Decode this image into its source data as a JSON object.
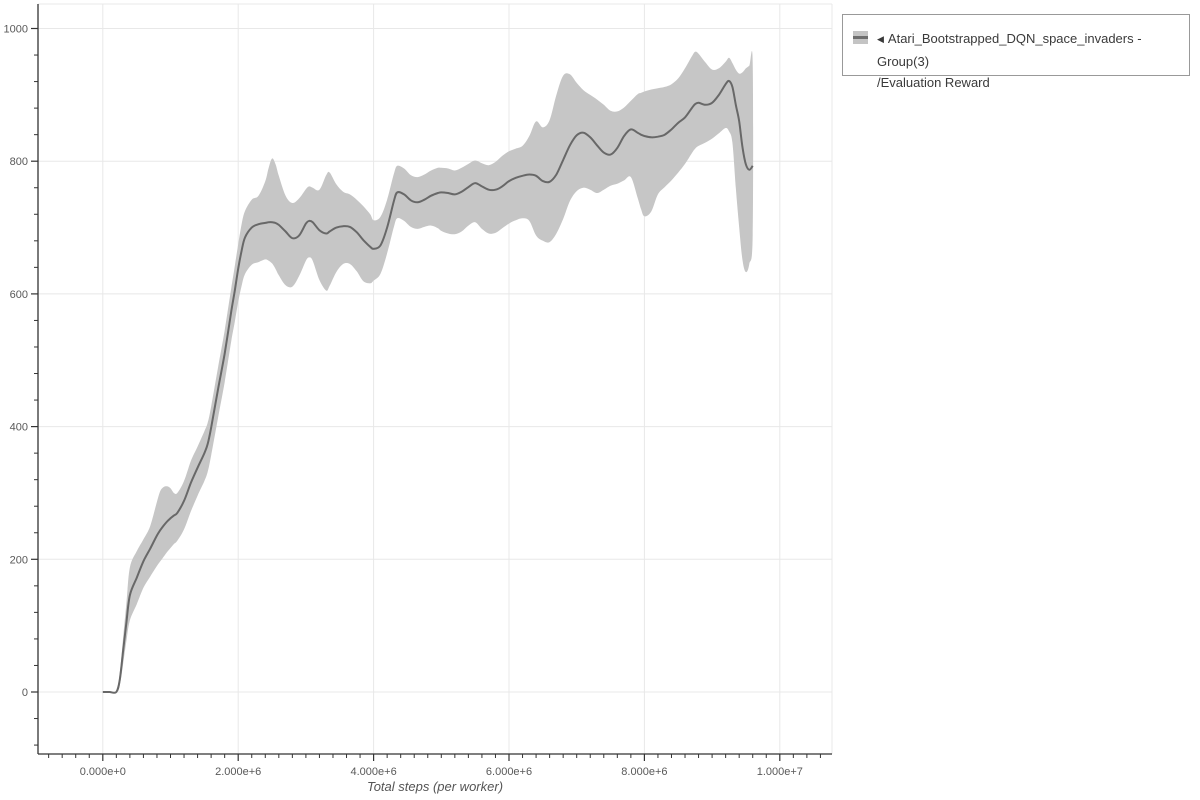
{
  "legend": {
    "collapse_icon": "left-triangle",
    "series_label": "Atari_Bootstrapped_DQN_space_invaders - Group(3)",
    "metric_label": "/Evaluation Reward"
  },
  "chart_data": {
    "type": "line",
    "title": "",
    "xlabel": "Total steps (per worker)",
    "ylabel": "",
    "grid": true,
    "legend_position": "outside-top-right",
    "x_range_millions": [
      -0.96,
      10.77
    ],
    "y_range": [
      -93,
      1037
    ],
    "x_major_ticks": [
      {
        "m": 0,
        "label": "0.000e+0"
      },
      {
        "m": 2,
        "label": "2.000e+6"
      },
      {
        "m": 4,
        "label": "4.000e+6"
      },
      {
        "m": 6,
        "label": "6.000e+6"
      },
      {
        "m": 8,
        "label": "8.000e+6"
      },
      {
        "m": 10,
        "label": "1.000e+7"
      }
    ],
    "y_major_ticks": [
      {
        "v": 0,
        "label": "0"
      },
      {
        "v": 200,
        "label": "200"
      },
      {
        "v": 400,
        "label": "400"
      },
      {
        "v": 600,
        "label": "600"
      },
      {
        "v": 800,
        "label": "800"
      },
      {
        "v": 1000,
        "label": "1000"
      }
    ],
    "x_minor_step_millions": 0.2,
    "y_minor_step": 40,
    "colors": {
      "line": "#686868",
      "band": "#c6c6c6",
      "grid": "#e8e8e8",
      "axis": "#333333",
      "tick_label": "#595959",
      "axis_title": "#555555"
    },
    "series": [
      {
        "name": "Atari_Bootstrapped_DQN_space_invaders - Group(3)/Evaluation Reward",
        "x_unit": "millions of steps",
        "points_format": [
          "x_millions",
          "mean",
          "band_low",
          "band_high"
        ],
        "points": [
          [
            0.0,
            0,
            0,
            0
          ],
          [
            0.1,
            0,
            0,
            0
          ],
          [
            0.2,
            0,
            0,
            0
          ],
          [
            0.25,
            18,
            10,
            28
          ],
          [
            0.3,
            62,
            42,
            82
          ],
          [
            0.35,
            106,
            78,
            136
          ],
          [
            0.4,
            146,
            108,
            188
          ],
          [
            0.5,
            172,
            132,
            212
          ],
          [
            0.6,
            197,
            157,
            230
          ],
          [
            0.7,
            216,
            174,
            250
          ],
          [
            0.8,
            236,
            190,
            287
          ],
          [
            0.85,
            244,
            197,
            303
          ],
          [
            0.9,
            251,
            204,
            309
          ],
          [
            0.95,
            257,
            211,
            310
          ],
          [
            1.0,
            262,
            217,
            307
          ],
          [
            1.05,
            266,
            223,
            300
          ],
          [
            1.1,
            270,
            228,
            300
          ],
          [
            1.2,
            288,
            245,
            318
          ],
          [
            1.3,
            315,
            272,
            348
          ],
          [
            1.4,
            338,
            296,
            370
          ],
          [
            1.5,
            360,
            318,
            393
          ],
          [
            1.55,
            374,
            332,
            406
          ],
          [
            1.6,
            398,
            356,
            430
          ],
          [
            1.7,
            455,
            412,
            488
          ],
          [
            1.8,
            510,
            467,
            545
          ],
          [
            1.9,
            575,
            530,
            610
          ],
          [
            1.95,
            605,
            558,
            642
          ],
          [
            2.0,
            638,
            588,
            675
          ],
          [
            2.05,
            665,
            612,
            705
          ],
          [
            2.1,
            685,
            630,
            725
          ],
          [
            2.2,
            700,
            644,
            742
          ],
          [
            2.3,
            705,
            648,
            748
          ],
          [
            2.4,
            707,
            652,
            770
          ],
          [
            2.45,
            708,
            650,
            790
          ],
          [
            2.5,
            708,
            646,
            804
          ],
          [
            2.55,
            707,
            638,
            796
          ],
          [
            2.6,
            704,
            628,
            778
          ],
          [
            2.7,
            694,
            613,
            748
          ],
          [
            2.8,
            684,
            611,
            737
          ],
          [
            2.9,
            688,
            627,
            744
          ],
          [
            3.0,
            706,
            650,
            758
          ],
          [
            3.05,
            710,
            655,
            762
          ],
          [
            3.1,
            708,
            650,
            760
          ],
          [
            3.2,
            696,
            621,
            757
          ],
          [
            3.3,
            691,
            605,
            779
          ],
          [
            3.35,
            694,
            612,
            783
          ],
          [
            3.45,
            700,
            633,
            765
          ],
          [
            3.55,
            702,
            645,
            754
          ],
          [
            3.65,
            701,
            645,
            750
          ],
          [
            3.75,
            693,
            634,
            742
          ],
          [
            3.85,
            681,
            619,
            732
          ],
          [
            3.95,
            671,
            616,
            720
          ],
          [
            4.0,
            668,
            620,
            711
          ],
          [
            4.1,
            673,
            630,
            716
          ],
          [
            4.2,
            700,
            661,
            742
          ],
          [
            4.3,
            740,
            701,
            781
          ],
          [
            4.35,
            753,
            714,
            793
          ],
          [
            4.45,
            750,
            710,
            789
          ],
          [
            4.55,
            741,
            701,
            779
          ],
          [
            4.65,
            738,
            698,
            776
          ],
          [
            4.75,
            742,
            701,
            780
          ],
          [
            4.85,
            748,
            703,
            786
          ],
          [
            4.95,
            752,
            699,
            790
          ],
          [
            5.0,
            753,
            695,
            790
          ],
          [
            5.1,
            752,
            691,
            789
          ],
          [
            5.2,
            750,
            690,
            786
          ],
          [
            5.3,
            754,
            694,
            790
          ],
          [
            5.4,
            761,
            703,
            796
          ],
          [
            5.5,
            767,
            708,
            801
          ],
          [
            5.6,
            762,
            698,
            797
          ],
          [
            5.7,
            757,
            691,
            794
          ],
          [
            5.8,
            757,
            692,
            799
          ],
          [
            5.9,
            762,
            699,
            808
          ],
          [
            6.0,
            770,
            706,
            815
          ],
          [
            6.1,
            775,
            711,
            819
          ],
          [
            6.2,
            778,
            714,
            823
          ],
          [
            6.3,
            780,
            710,
            838
          ],
          [
            6.4,
            778,
            688,
            860
          ],
          [
            6.5,
            770,
            680,
            851
          ],
          [
            6.6,
            769,
            678,
            862
          ],
          [
            6.7,
            780,
            691,
            900
          ],
          [
            6.8,
            802,
            713,
            929
          ],
          [
            6.9,
            824,
            740,
            931
          ],
          [
            7.0,
            839,
            755,
            918
          ],
          [
            7.1,
            843,
            760,
            907
          ],
          [
            7.2,
            836,
            757,
            900
          ],
          [
            7.3,
            824,
            752,
            893
          ],
          [
            7.4,
            813,
            757,
            885
          ],
          [
            7.5,
            810,
            763,
            876
          ],
          [
            7.6,
            820,
            766,
            875
          ],
          [
            7.7,
            838,
            771,
            881
          ],
          [
            7.8,
            848,
            776,
            891
          ],
          [
            7.9,
            843,
            745,
            901
          ],
          [
            7.95,
            840,
            728,
            903
          ],
          [
            8.0,
            838,
            717,
            905
          ],
          [
            8.1,
            836,
            724,
            908
          ],
          [
            8.2,
            837,
            750,
            910
          ],
          [
            8.3,
            840,
            761,
            912
          ],
          [
            8.4,
            848,
            771,
            916
          ],
          [
            8.5,
            858,
            783,
            925
          ],
          [
            8.6,
            866,
            796,
            940
          ],
          [
            8.7,
            880,
            812,
            958
          ],
          [
            8.75,
            886,
            819,
            965
          ],
          [
            8.8,
            888,
            823,
            962
          ],
          [
            8.9,
            885,
            828,
            949
          ],
          [
            9.0,
            888,
            834,
            938
          ],
          [
            9.1,
            900,
            842,
            940
          ],
          [
            9.2,
            916,
            850,
            950
          ],
          [
            9.25,
            921,
            845,
            956
          ],
          [
            9.3,
            912,
            828,
            948
          ],
          [
            9.35,
            885,
            760,
            938
          ],
          [
            9.4,
            860,
            700,
            932
          ],
          [
            9.45,
            820,
            650,
            934
          ],
          [
            9.5,
            795,
            633,
            940
          ],
          [
            9.55,
            787,
            645,
            944
          ],
          [
            9.6,
            793,
            690,
            948
          ]
        ]
      }
    ]
  }
}
